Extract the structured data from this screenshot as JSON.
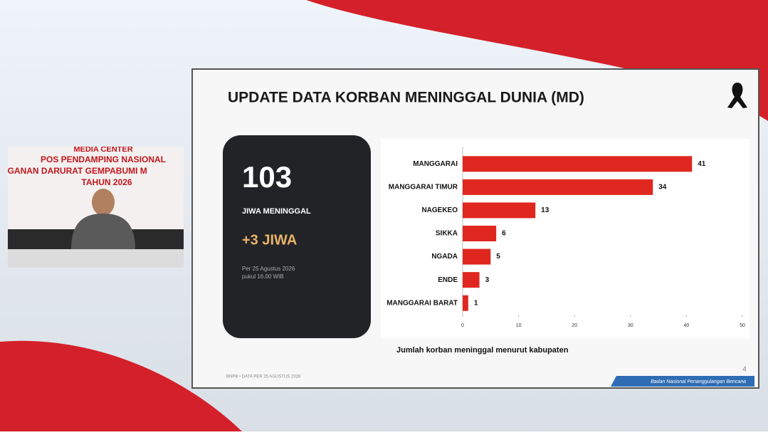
{
  "video": {
    "banner": [
      "MEDIA CENTER",
      "POS PENDAMPING NASIONAL",
      "ANGANAN DARURAT GEMPABUMI M",
      "TAHUN 2026"
    ]
  },
  "slide": {
    "title": "UPDATE DATA KORBAN MENINGGAL DUNIA (MD)",
    "card": {
      "total": "103",
      "total_label": "JIWA MENINGGAL",
      "change": "+3 JIWA",
      "date": "Per 25 Agustus 2026",
      "time": "pukul 16.00 WIB"
    },
    "footer": "BNPB • DATA PER 25 AGUSTUS 2026",
    "page": "4",
    "agency": "Badan Nasional Penanggulangan Bencana"
  },
  "chart_data": {
    "type": "hbar",
    "subtitle": "Jumlah korban meninggal menurut kabupaten",
    "categories": [
      "MANGGARAI",
      "MANGGARAI TIMUR",
      "NAGEKEO",
      "SIKKA",
      "NGADA",
      "ENDE",
      "MANGGARAI BARAT"
    ],
    "values": [
      41,
      34,
      13,
      6,
      5,
      3,
      1
    ],
    "color": "#e0271f",
    "xlim": [
      0,
      50
    ],
    "xticks": [
      0,
      10,
      20,
      30,
      40,
      50
    ]
  }
}
